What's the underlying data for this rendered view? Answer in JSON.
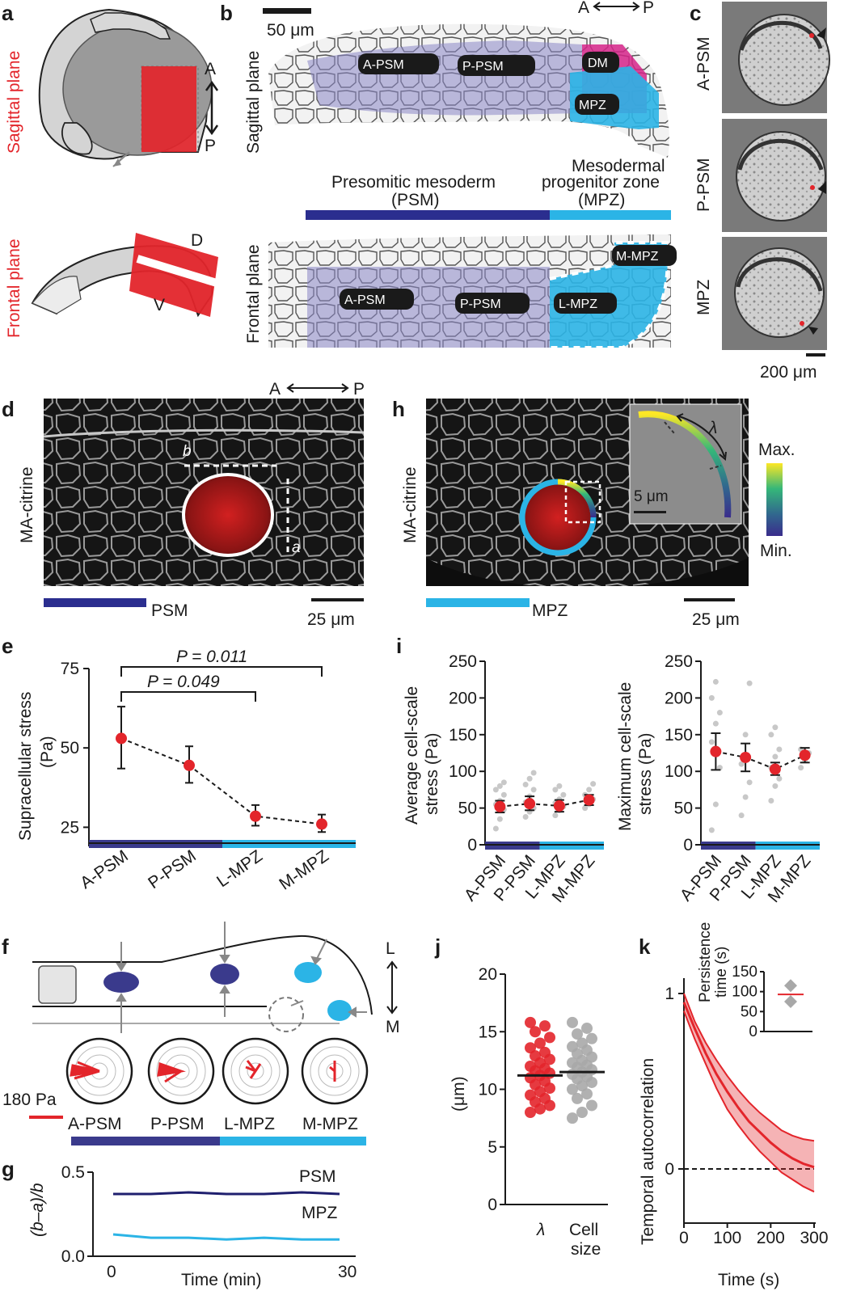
{
  "panels": {
    "a": {
      "label": "a",
      "sagittal": "Sagittal plane",
      "frontal": "Frontal plane",
      "ap_a": "A",
      "ap_p": "P",
      "dv_d": "D",
      "dv_v": "V"
    },
    "b": {
      "label": "b",
      "scale": "50 μm",
      "sagittal": "Sagittal plane",
      "frontal": "Frontal plane",
      "axis_a": "A",
      "axis_p": "P",
      "regions": [
        "A-PSM",
        "P-PSM",
        "DM",
        "MPZ",
        "A-PSM",
        "P-PSM",
        "L-MPZ",
        "M-MPZ"
      ],
      "psm_title": "Presomitic mesoderm",
      "psm_abbr": "(PSM)",
      "mpz_title": "Mesodermal",
      "mpz_title2": "progenitor zone",
      "mpz_abbr": "(MPZ)"
    },
    "c": {
      "label": "c",
      "rows": [
        "A-PSM",
        "P-PSM",
        "MPZ"
      ],
      "scale": "200 μm"
    },
    "d": {
      "label": "d",
      "marker": "MA-citrine",
      "axis_a": "A",
      "axis_p": "P",
      "dim_b": "b",
      "dim_a": "a",
      "region": "PSM",
      "scale": "25 μm"
    },
    "h": {
      "label": "h",
      "marker": "MA-citrine",
      "region": "MPZ",
      "scale": "25 μm",
      "inset_scale": "5 μm",
      "lambda": "λ",
      "max": "Max.",
      "min": "Min."
    },
    "e": {
      "label": "e",
      "ylabel1": "Supracellular stress",
      "ylabel2": "(Pa)",
      "p1": "P = 0.011",
      "p2": "P = 0.049"
    },
    "i": {
      "label": "i",
      "left_ylabel1": "Average cell-scale",
      "left_ylabel2": "stress (Pa)",
      "right_ylabel1": "Maximum cell-scale",
      "right_ylabel2": "stress (Pa)"
    },
    "f": {
      "label": "f",
      "axis_l": "L",
      "axis_m": "M",
      "scale": "180 Pa",
      "regions": [
        "A-PSM",
        "P-PSM",
        "L-MPZ",
        "M-MPZ"
      ]
    },
    "g": {
      "label": "g",
      "ylabel": "(b–a)/b",
      "xlabel": "Time (min)",
      "x0": "0",
      "x30": "30",
      "psm": "PSM",
      "mpz": "MPZ"
    },
    "j": {
      "label": "j",
      "ylabel": "(μm)",
      "cat1": "λ",
      "cat2a": "Cell",
      "cat2b": "size"
    },
    "k": {
      "label": "k",
      "ylabel": "Temporal autocorrelation",
      "xlabel": "Time (s)",
      "inset_ylabel1": "Persistence",
      "inset_ylabel2": "time (s)"
    }
  },
  "colors": {
    "psm": "#3a3a8c",
    "mpz": "#2bb4e6",
    "red": "#e3252b",
    "dm": "#d6248a"
  },
  "chart_data": [
    {
      "id": "e",
      "type": "line",
      "categories": [
        "A-PSM",
        "P-PSM",
        "L-MPZ",
        "M-MPZ"
      ],
      "values": [
        53,
        44.5,
        28.5,
        26
      ],
      "error_low": [
        43.5,
        39,
        25.5,
        23.5
      ],
      "error_high": [
        63,
        50.5,
        32,
        29
      ],
      "ylim": [
        20,
        75
      ],
      "yticks": [
        25,
        50,
        75
      ]
    },
    {
      "id": "i-left",
      "type": "scatter",
      "categories": [
        "A-PSM",
        "P-PSM",
        "L-MPZ",
        "M-MPZ"
      ],
      "values": [
        52,
        56,
        53,
        61
      ],
      "error_low": [
        44,
        47,
        45,
        54
      ],
      "error_high": [
        60,
        66,
        61,
        68
      ],
      "points": [
        [
          22,
          35,
          48,
          55,
          60,
          68,
          75,
          80,
          85
        ],
        [
          38,
          45,
          50,
          58,
          66,
          75,
          82,
          90,
          98
        ],
        [
          40,
          47,
          52,
          57,
          62,
          68,
          75,
          80
        ],
        [
          50,
          55,
          62,
          68,
          75,
          83
        ]
      ],
      "ylim": [
        0,
        250
      ],
      "yticks": [
        0,
        50,
        100,
        150,
        200,
        250
      ]
    },
    {
      "id": "i-right",
      "type": "scatter",
      "categories": [
        "A-PSM",
        "P-PSM",
        "L-MPZ",
        "M-MPZ"
      ],
      "values": [
        127,
        119,
        103,
        122
      ],
      "error_low": [
        102,
        100,
        95,
        112
      ],
      "error_high": [
        152,
        138,
        112,
        132
      ],
      "points": [
        [
          20,
          55,
          105,
          140,
          165,
          180,
          200,
          222
        ],
        [
          40,
          65,
          85,
          110,
          150,
          220
        ],
        [
          60,
          80,
          90,
          105,
          120,
          130,
          150,
          160
        ],
        [
          105,
          115,
          125,
          130
        ]
      ],
      "ylim": [
        0,
        250
      ],
      "yticks": [
        0,
        50,
        100,
        150,
        200,
        250
      ]
    },
    {
      "id": "g",
      "type": "line",
      "series": [
        {
          "name": "PSM",
          "x": [
            0,
            5,
            10,
            15,
            20,
            25,
            30
          ],
          "values": [
            0.37,
            0.37,
            0.38,
            0.37,
            0.37,
            0.38,
            0.37
          ]
        },
        {
          "name": "MPZ",
          "x": [
            0,
            5,
            10,
            15,
            20,
            25,
            30
          ],
          "values": [
            0.13,
            0.11,
            0.11,
            0.1,
            0.11,
            0.1,
            0.1
          ]
        }
      ],
      "ylim": [
        0,
        0.5
      ],
      "yticks": [
        "0.0",
        "0.5"
      ]
    },
    {
      "id": "j",
      "type": "scatter",
      "categories": [
        "λ",
        "Cell size"
      ],
      "medians": [
        11.2,
        11.5
      ],
      "points": [
        [
          8.0,
          8.3,
          8.6,
          8.9,
          9.2,
          9.5,
          9.8,
          10.1,
          10.4,
          10.7,
          11.0,
          11.2,
          11.4,
          11.6,
          11.8,
          12.0,
          12.3,
          12.6,
          12.9,
          13.2,
          13.6,
          14.0,
          14.5,
          15.0,
          15.5,
          15.8
        ],
        [
          7.5,
          8.0,
          8.6,
          9.2,
          9.6,
          10.0,
          10.3,
          10.6,
          10.9,
          11.1,
          11.3,
          11.5,
          11.7,
          11.9,
          12.1,
          12.3,
          12.5,
          12.8,
          13.1,
          13.4,
          13.7,
          14.0,
          14.4,
          14.8,
          15.3,
          15.8
        ]
      ],
      "ylim": [
        0,
        20
      ],
      "yticks": [
        0,
        5,
        10,
        15,
        20
      ]
    },
    {
      "id": "k",
      "type": "area",
      "x": [
        0,
        25,
        50,
        75,
        100,
        125,
        150,
        175,
        200,
        225,
        250,
        275,
        300
      ],
      "mean": [
        0.95,
        0.8,
        0.66,
        0.54,
        0.44,
        0.35,
        0.27,
        0.21,
        0.15,
        0.1,
        0.06,
        0.03,
        0.01
      ],
      "upper": [
        1.0,
        0.84,
        0.72,
        0.62,
        0.53,
        0.45,
        0.38,
        0.32,
        0.27,
        0.22,
        0.19,
        0.17,
        0.16
      ],
      "lower": [
        0.9,
        0.74,
        0.6,
        0.46,
        0.34,
        0.25,
        0.17,
        0.1,
        0.04,
        -0.02,
        -0.06,
        -0.1,
        -0.13
      ],
      "xticks": [
        0,
        100,
        200,
        300
      ],
      "yticks": [
        "0",
        "1"
      ]
    },
    {
      "id": "k-inset",
      "type": "scatter",
      "values": [
        115,
        75
      ],
      "mean": 93,
      "ylim": [
        0,
        150
      ],
      "yticks": [
        0,
        50,
        100,
        150
      ]
    }
  ]
}
